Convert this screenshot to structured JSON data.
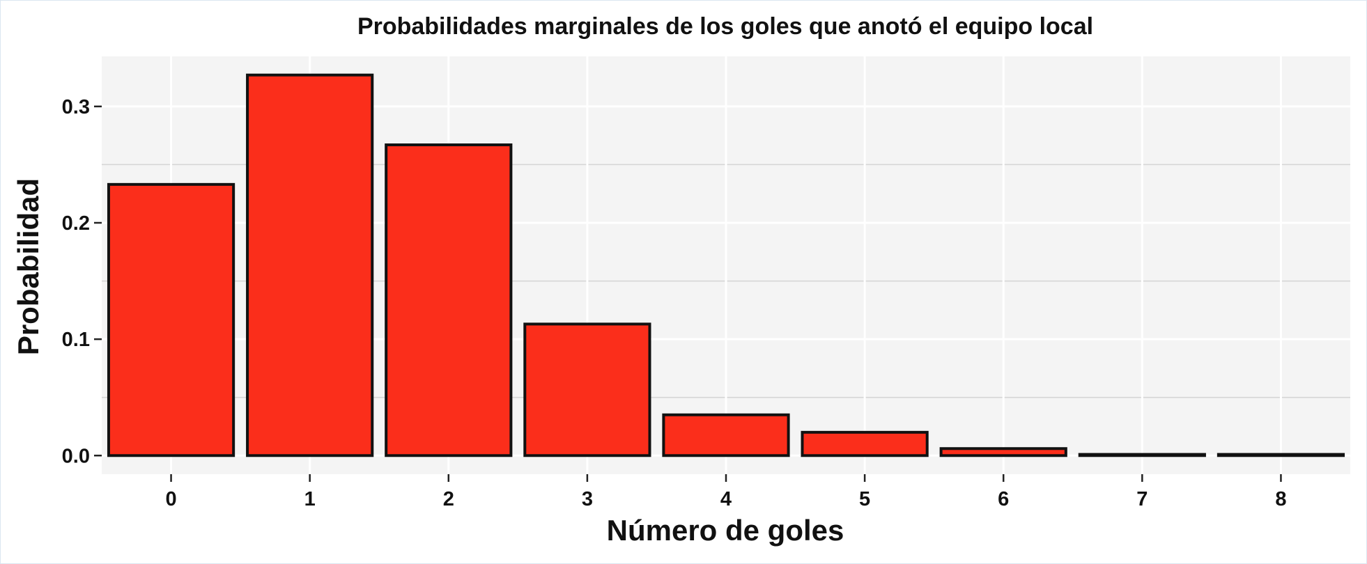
{
  "chart_data": {
    "type": "bar",
    "title": "Probabilidades marginales de los goles que anotó el equipo local",
    "xlabel": "Número de goles",
    "ylabel": "Probabilidad",
    "categories": [
      "0",
      "1",
      "2",
      "3",
      "4",
      "5",
      "6",
      "7",
      "8"
    ],
    "values": [
      0.233,
      0.327,
      0.267,
      0.113,
      0.035,
      0.02,
      0.006,
      0.001,
      0.001
    ],
    "ylim": [
      -0.016,
      0.343
    ],
    "yticks": [
      0.0,
      0.1,
      0.2,
      0.3
    ],
    "ytick_labels": [
      "0.0",
      "0.1",
      "0.2",
      "0.3"
    ],
    "grid": true,
    "legend": "none",
    "colors": {
      "bar_fill": "#fb2e1b",
      "bar_stroke": "#111111",
      "panel_background": "#f4f4f4",
      "grid_major": "#ffffff",
      "grid_minor": "#d4d4d4"
    }
  }
}
